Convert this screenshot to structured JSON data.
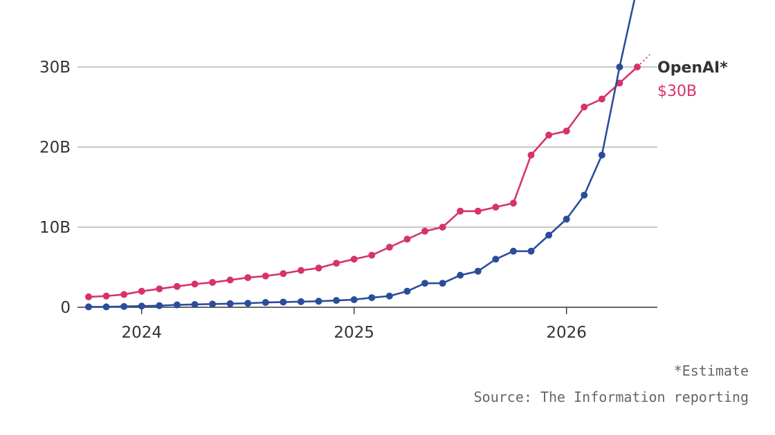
{
  "chart_data": {
    "type": "line",
    "title": "",
    "xlabel": "",
    "ylabel": "",
    "x_ticks": [
      "2024",
      "2025",
      "2026"
    ],
    "y_ticks": [
      "0",
      "10B",
      "20B",
      "30B"
    ],
    "ylim": [
      0,
      30
    ],
    "grid": true,
    "legend": "direct labels at line end",
    "series": [
      {
        "name": "OpenAI*",
        "value_label": "$30B",
        "color": "#d6336c",
        "points": [
          [
            "2023-10",
            1.3
          ],
          [
            "2023-11",
            1.4
          ],
          [
            "2023-12",
            1.6
          ],
          [
            "2024-01",
            2.0
          ],
          [
            "2024-02",
            2.3
          ],
          [
            "2024-03",
            2.6
          ],
          [
            "2024-04",
            2.9
          ],
          [
            "2024-05",
            3.1
          ],
          [
            "2024-06",
            3.4
          ],
          [
            "2024-07",
            3.7
          ],
          [
            "2024-08",
            3.9
          ],
          [
            "2024-09",
            4.2
          ],
          [
            "2024-10",
            4.6
          ],
          [
            "2024-11",
            4.9
          ],
          [
            "2024-12",
            5.5
          ],
          [
            "2025-01",
            6.0
          ],
          [
            "2025-02",
            6.5
          ],
          [
            "2025-03",
            7.5
          ],
          [
            "2025-04",
            8.5
          ],
          [
            "2025-05",
            9.5
          ],
          [
            "2025-06",
            10.0
          ],
          [
            "2025-07",
            12.0
          ],
          [
            "2025-08",
            12.0
          ],
          [
            "2025-09",
            12.5
          ],
          [
            "2025-10",
            13.0
          ],
          [
            "2025-11",
            19.0
          ],
          [
            "2025-12",
            21.5
          ],
          [
            "2026-01",
            22.0
          ],
          [
            "2026-02",
            25.0
          ],
          [
            "2026-03",
            26.0
          ],
          [
            "2026-04",
            28.0
          ],
          [
            "2026-05",
            30.0
          ]
        ]
      },
      {
        "name": "",
        "color": "#2a4d9b",
        "points": [
          [
            "2023-10",
            0.05
          ],
          [
            "2023-11",
            0.05
          ],
          [
            "2023-12",
            0.1
          ],
          [
            "2024-01",
            0.15
          ],
          [
            "2024-02",
            0.2
          ],
          [
            "2024-03",
            0.3
          ],
          [
            "2024-04",
            0.35
          ],
          [
            "2024-05",
            0.4
          ],
          [
            "2024-06",
            0.45
          ],
          [
            "2024-07",
            0.5
          ],
          [
            "2024-08",
            0.6
          ],
          [
            "2024-09",
            0.65
          ],
          [
            "2024-10",
            0.7
          ],
          [
            "2024-11",
            0.75
          ],
          [
            "2024-12",
            0.85
          ],
          [
            "2025-01",
            0.95
          ],
          [
            "2025-02",
            1.2
          ],
          [
            "2025-03",
            1.4
          ],
          [
            "2025-04",
            2.0
          ],
          [
            "2025-05",
            3.0
          ],
          [
            "2025-06",
            3.0
          ],
          [
            "2025-07",
            4.0
          ],
          [
            "2025-08",
            4.5
          ],
          [
            "2025-09",
            6.0
          ],
          [
            "2025-10",
            7.0
          ],
          [
            "2025-11",
            7.0
          ],
          [
            "2025-12",
            9.0
          ],
          [
            "2026-01",
            11.0
          ],
          [
            "2026-02",
            14.0
          ],
          [
            "2026-03",
            19.0
          ],
          [
            "2026-04",
            30.0
          ],
          [
            "2026-05",
            40.0
          ]
        ]
      }
    ]
  },
  "notes": {
    "estimate": "*Estimate",
    "source": "Source: The Information reporting"
  }
}
